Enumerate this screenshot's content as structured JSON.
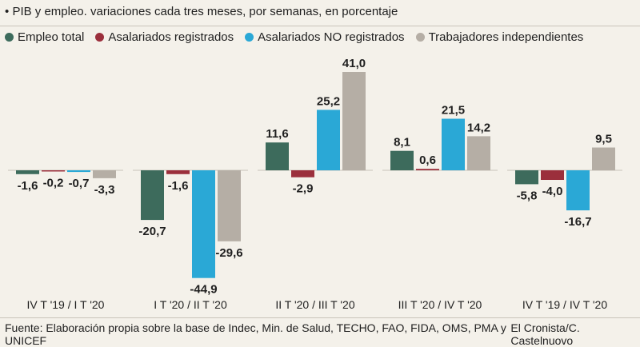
{
  "chart_data": {
    "type": "bar",
    "title": "PIB y empleo. variaciones cada tres meses, por semanas, en porcentaje",
    "categories": [
      "IV T '19 / I T '20",
      "I T '20 / II T '20",
      "II T '20 / III T '20",
      "III T '20 / IV T '20",
      "IV T '19 / IV T '20"
    ],
    "series": [
      {
        "name": "Empleo total",
        "color": "#3d6b5c",
        "values": [
          -1.6,
          -20.7,
          11.6,
          8.1,
          -5.8
        ]
      },
      {
        "name": "Asalariados registrados",
        "color": "#9b2f3c",
        "values": [
          -0.2,
          -1.6,
          -2.9,
          0.6,
          -4.0
        ]
      },
      {
        "name": "Asalariados NO registrados",
        "color": "#2aa8d6",
        "values": [
          -0.7,
          -44.9,
          25.2,
          21.5,
          -16.7
        ]
      },
      {
        "name": "Trabajadores independientes",
        "color": "#b5aea5",
        "values": [
          -3.3,
          -29.6,
          41.0,
          14.2,
          9.5
        ]
      }
    ],
    "value_labels": [
      [
        "-1,6",
        "-0,2",
        "-0,7",
        "-3,3"
      ],
      [
        "-20,7",
        "-1,6",
        "-44,9",
        "-29,6"
      ],
      [
        "11,6",
        "-2,9",
        "25,2",
        "41,0"
      ],
      [
        "8,1",
        "0,6",
        "21,5",
        "14,2"
      ],
      [
        "-5,8",
        "-4,0",
        "-16,7",
        "9,5"
      ]
    ],
    "ylim": [
      -47,
      44
    ],
    "xlabel": "",
    "ylabel": "",
    "grid": false,
    "legend": "top-left"
  },
  "header": {
    "bullet": "•",
    "title": "PIB y empleo. variaciones cada tres meses, por semanas, en porcentaje"
  },
  "footer": {
    "source": "Fuente: Elaboración propia sobre la base de Indec, Min. de Salud, TECHO, FAO, FIDA, OMS, PMA y UNICEF",
    "credit": "El Cronista/C. Castelnuovo"
  }
}
